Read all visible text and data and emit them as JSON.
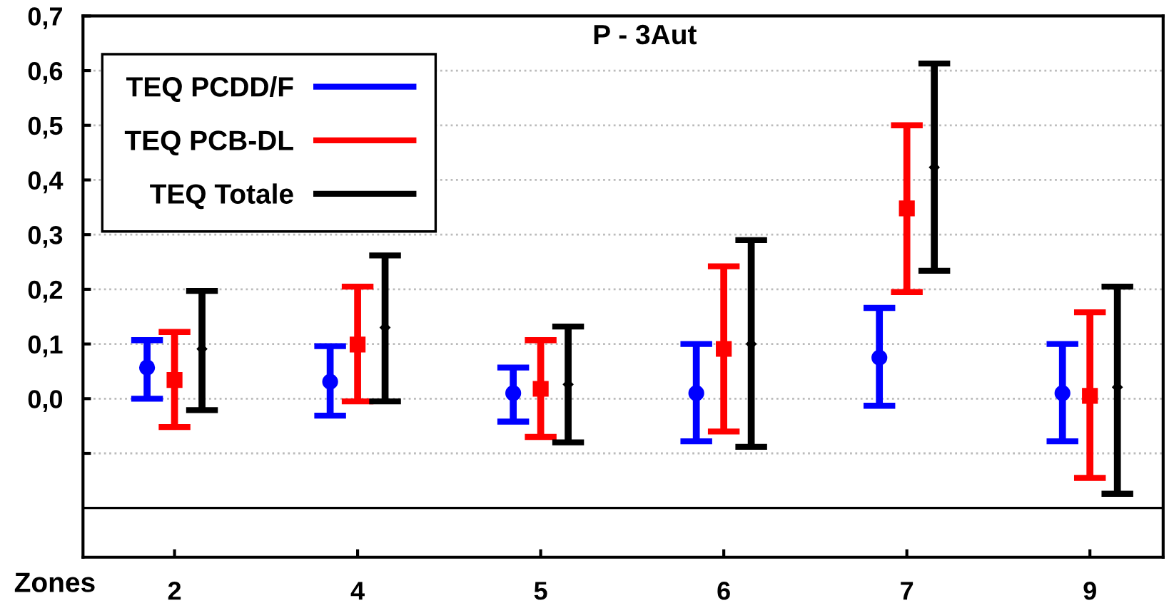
{
  "chart_data": {
    "type": "scatter",
    "title": "P - 3Aut",
    "xlabel": "Zones",
    "categories": [
      "2",
      "4",
      "5",
      "6",
      "7",
      "9"
    ],
    "series": [
      {
        "name": "TEQ PCDD/F",
        "color": "#0000ff",
        "marker": "circle",
        "values": [
          0.057,
          0.031,
          0.01,
          0.01,
          0.075,
          0.01
        ],
        "errors": [
          [
            0.0,
            0.107
          ],
          [
            -0.031,
            0.096
          ],
          [
            -0.042,
            0.057
          ],
          [
            -0.078,
            0.1
          ],
          [
            -0.013,
            0.166
          ],
          [
            -0.078,
            0.1
          ]
        ]
      },
      {
        "name": "TEQ PCB-DL",
        "color": "#ff0000",
        "marker": "square",
        "values": [
          0.034,
          0.099,
          0.018,
          0.091,
          0.348,
          0.005
        ],
        "errors": [
          [
            -0.052,
            0.122
          ],
          [
            -0.005,
            0.205
          ],
          [
            -0.07,
            0.107
          ],
          [
            -0.06,
            0.242
          ],
          [
            0.195,
            0.5
          ],
          [
            -0.145,
            0.158
          ]
        ]
      },
      {
        "name": "TEQ Totale",
        "color": "#000000",
        "marker": "diamond",
        "values": [
          0.091,
          0.13,
          0.026,
          0.1,
          0.423,
          0.021
        ],
        "errors": [
          [
            -0.021,
            0.197
          ],
          [
            -0.005,
            0.262
          ],
          [
            -0.08,
            0.132
          ],
          [
            -0.088,
            0.29
          ],
          [
            0.234,
            0.613
          ],
          [
            -0.174,
            0.205
          ]
        ]
      }
    ],
    "ylim": [
      -0.29,
      0.7
    ],
    "yticks": [
      {
        "value": -0.1,
        "label": null
      },
      {
        "value": 0.0,
        "label": "0,0"
      },
      {
        "value": 0.1,
        "label": "0,1"
      },
      {
        "value": 0.2,
        "label": "0,2"
      },
      {
        "value": 0.3,
        "label": "0,3"
      },
      {
        "value": 0.4,
        "label": "0,4"
      },
      {
        "value": 0.5,
        "label": "0,5"
      },
      {
        "value": 0.6,
        "label": "0,6"
      },
      {
        "value": 0.7,
        "label": "0,7"
      }
    ],
    "ref_lines": [
      {
        "axis": "y",
        "value": -0.2,
        "color": "#000000",
        "line_style": "solid"
      }
    ],
    "grid": "y",
    "legend": "top left"
  }
}
